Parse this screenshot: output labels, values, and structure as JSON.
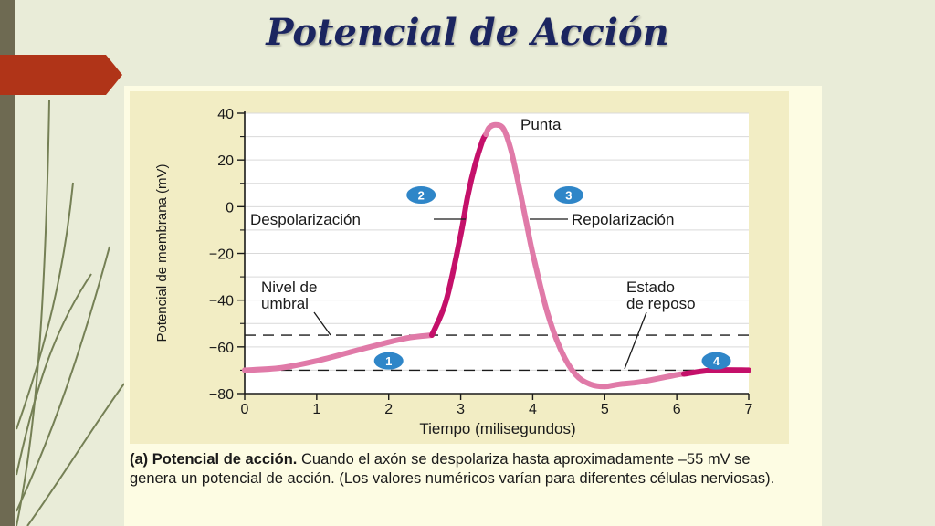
{
  "slide": {
    "title": "Potencial de Acción",
    "caption_bold": "(a) Potencial de acción.",
    "caption_text": " Cuando el axón se despolariza hasta aproximadamente –55 mV se genera un potencial de acción. (Los valores numéricos varían para diferentes células nerviosas)."
  },
  "colors": {
    "title": "#1b2560",
    "accent_tab": "#b03418",
    "curve_light": "#e07aa8",
    "curve_dark": "#c4106a",
    "marker_blue": "#2f86c8",
    "plot_background": "#ffffff"
  },
  "chart_data": {
    "type": "line",
    "xlabel": "Tiempo (milisegundos)",
    "ylabel": "Potencial de membrana (mV)",
    "xlim": [
      0,
      7
    ],
    "ylim": [
      -80,
      40
    ],
    "x_ticks": [
      0,
      1,
      2,
      3,
      4,
      5,
      6,
      7
    ],
    "y_ticks": [
      40,
      20,
      0,
      -20,
      -40,
      -60,
      -80
    ],
    "y_tick_labels": [
      "40",
      "20",
      "0",
      "−20",
      "−40",
      "−60",
      "−80"
    ],
    "grid": "horizontal",
    "series": [
      {
        "x": [
          0,
          0.5,
          1,
          1.5,
          2,
          2.3,
          2.6,
          2.8,
          3,
          3.1,
          3.2,
          3.3,
          3.4,
          3.5,
          3.6,
          3.7,
          3.8,
          3.9,
          4,
          4.2,
          4.4,
          4.6,
          4.8,
          5,
          5.2,
          5.5,
          6,
          6.5,
          7
        ],
        "y": [
          -70,
          -69,
          -66,
          -62,
          -58,
          -56,
          -55,
          -40,
          -12,
          5,
          18,
          28,
          34,
          35,
          33,
          24,
          10,
          -5,
          -20,
          -45,
          -62,
          -72,
          -76,
          -77,
          -76,
          -75,
          -72,
          -70,
          -70
        ],
        "segments": [
          {
            "x_from": 0,
            "x_to": 2.6,
            "color": "light"
          },
          {
            "x_from": 2.6,
            "x_to": 3.35,
            "color": "dark"
          },
          {
            "x_from": 3.35,
            "x_to": 6.1,
            "color": "light"
          },
          {
            "x_from": 6.1,
            "x_to": 7,
            "color": "dark"
          }
        ]
      }
    ],
    "reference_lines": [
      {
        "y": -55,
        "style": "dashed"
      },
      {
        "y": -70,
        "style": "dashed"
      }
    ],
    "annotations": {
      "punta": "Punta",
      "despolarizacion": "Despolarización",
      "repolarizacion": "Repolarización",
      "nivel_umbral_1": "Nivel de",
      "nivel_umbral_2": "umbral",
      "estado_reposo_1": "Estado",
      "estado_reposo_2": "de reposo"
    },
    "phase_markers": [
      {
        "label": "1",
        "x": 2.0,
        "y": -66
      },
      {
        "label": "2",
        "x": 2.45,
        "y": 5
      },
      {
        "label": "3",
        "x": 4.5,
        "y": 5
      },
      {
        "label": "4",
        "x": 6.55,
        "y": -66
      }
    ]
  }
}
